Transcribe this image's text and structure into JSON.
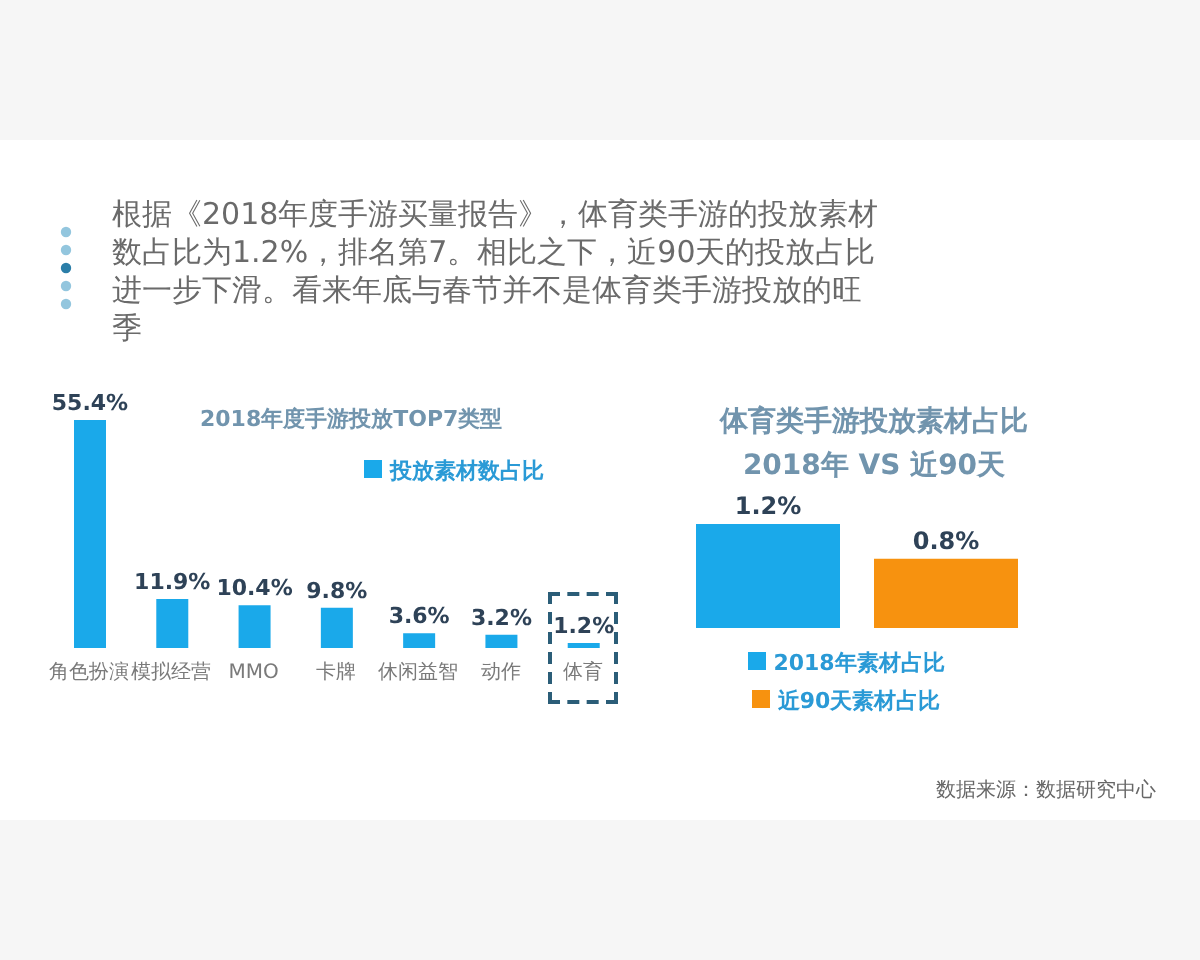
{
  "chart_data": [
    {
      "type": "other",
      "annotations": [
        "根据《2018年度手游买量报告》，体育类手游的投放素材数占比为1.2%，排名第7。相比之下，近90天的投放占比进一步下滑。看来年底与春节并不是体育类手游投放的旺季"
      ]
    },
    {
      "type": "bar",
      "title": "2018年度手游投放TOP7类型",
      "categories": [
        "角色扮演",
        "模拟经营",
        "MMO",
        "卡牌",
        "休闲益智",
        "动作",
        "体育"
      ],
      "series": [
        {
          "name": "投放素材数占比",
          "color": "#1aa9ea",
          "values": [
            55.4,
            11.9,
            10.4,
            9.8,
            3.6,
            3.2,
            1.2
          ],
          "value_labels": [
            "55.4%",
            "11.9%",
            "10.4%",
            "9.8%",
            "3.6%",
            "3.2%",
            "1.2%"
          ]
        }
      ],
      "legend": "top right"
    },
    {
      "type": "bar",
      "title": "体育类手游投放素材占比",
      "subtitle": "2018年 VS 近90天",
      "categories": [
        null
      ],
      "series": [
        {
          "name": "2018年素材占比",
          "color": "#1aa9ea",
          "values": [
            1.2
          ],
          "value_labels": [
            "1.2%"
          ]
        },
        {
          "name": "近90天素材占比",
          "color": "#f7920f",
          "values": [
            0.8
          ],
          "value_labels": [
            "0.8%"
          ]
        }
      ],
      "legend": "bottom",
      "annotations": [
        "数据来源：数据研究中心"
      ]
    }
  ]
}
